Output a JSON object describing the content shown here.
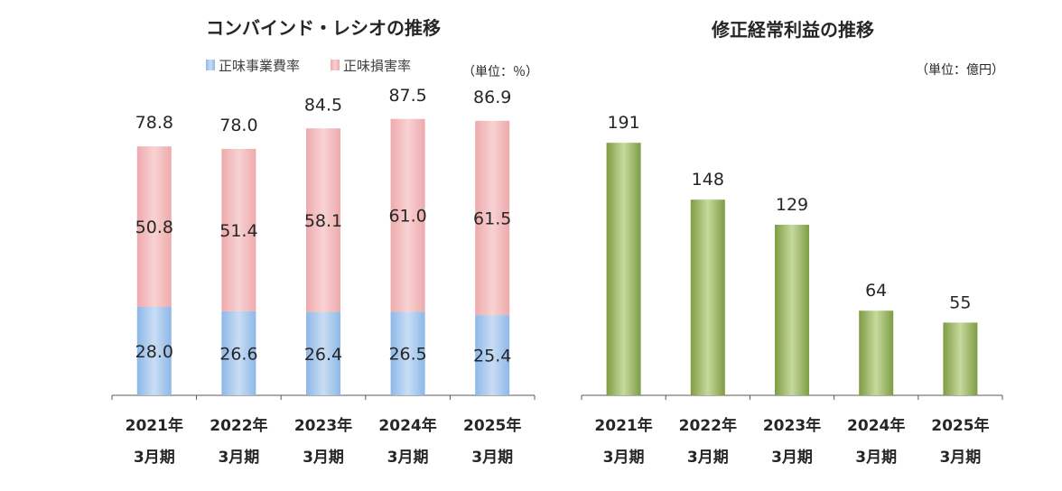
{
  "chart_data": [
    {
      "type": "bar",
      "stacked": true,
      "title": "コンバインド・レシオの推移",
      "unit": "（単位：％）",
      "categories": [
        [
          "2021年",
          "3月期"
        ],
        [
          "2022年",
          "3月期"
        ],
        [
          "2023年",
          "3月期"
        ],
        [
          "2024年",
          "3月期"
        ],
        [
          "2025年",
          "3月期"
        ]
      ],
      "series": [
        {
          "name": "正味事業費率",
          "values": [
            28.0,
            26.6,
            26.4,
            26.5,
            25.4
          ],
          "color": "#9DC3E6"
        },
        {
          "name": "正味損害率",
          "values": [
            50.8,
            51.4,
            58.1,
            61.0,
            61.5
          ],
          "color": "#F4B8BA"
        }
      ],
      "totals": [
        78.8,
        78.0,
        84.5,
        87.5,
        86.9
      ],
      "ylim": [
        0,
        100
      ],
      "legend": "top",
      "grid": false
    },
    {
      "type": "bar",
      "title": "修正経常利益の推移",
      "unit": "（単位：億円）",
      "categories": [
        [
          "2021年",
          "3月期"
        ],
        [
          "2022年",
          "3月期"
        ],
        [
          "2023年",
          "3月期"
        ],
        [
          "2024年",
          "3月期"
        ],
        [
          "2025年",
          "3月期"
        ]
      ],
      "values": [
        191,
        148,
        129,
        64,
        55
      ],
      "color": "#9BBB59",
      "ylim": [
        0,
        200
      ],
      "grid": false
    }
  ]
}
